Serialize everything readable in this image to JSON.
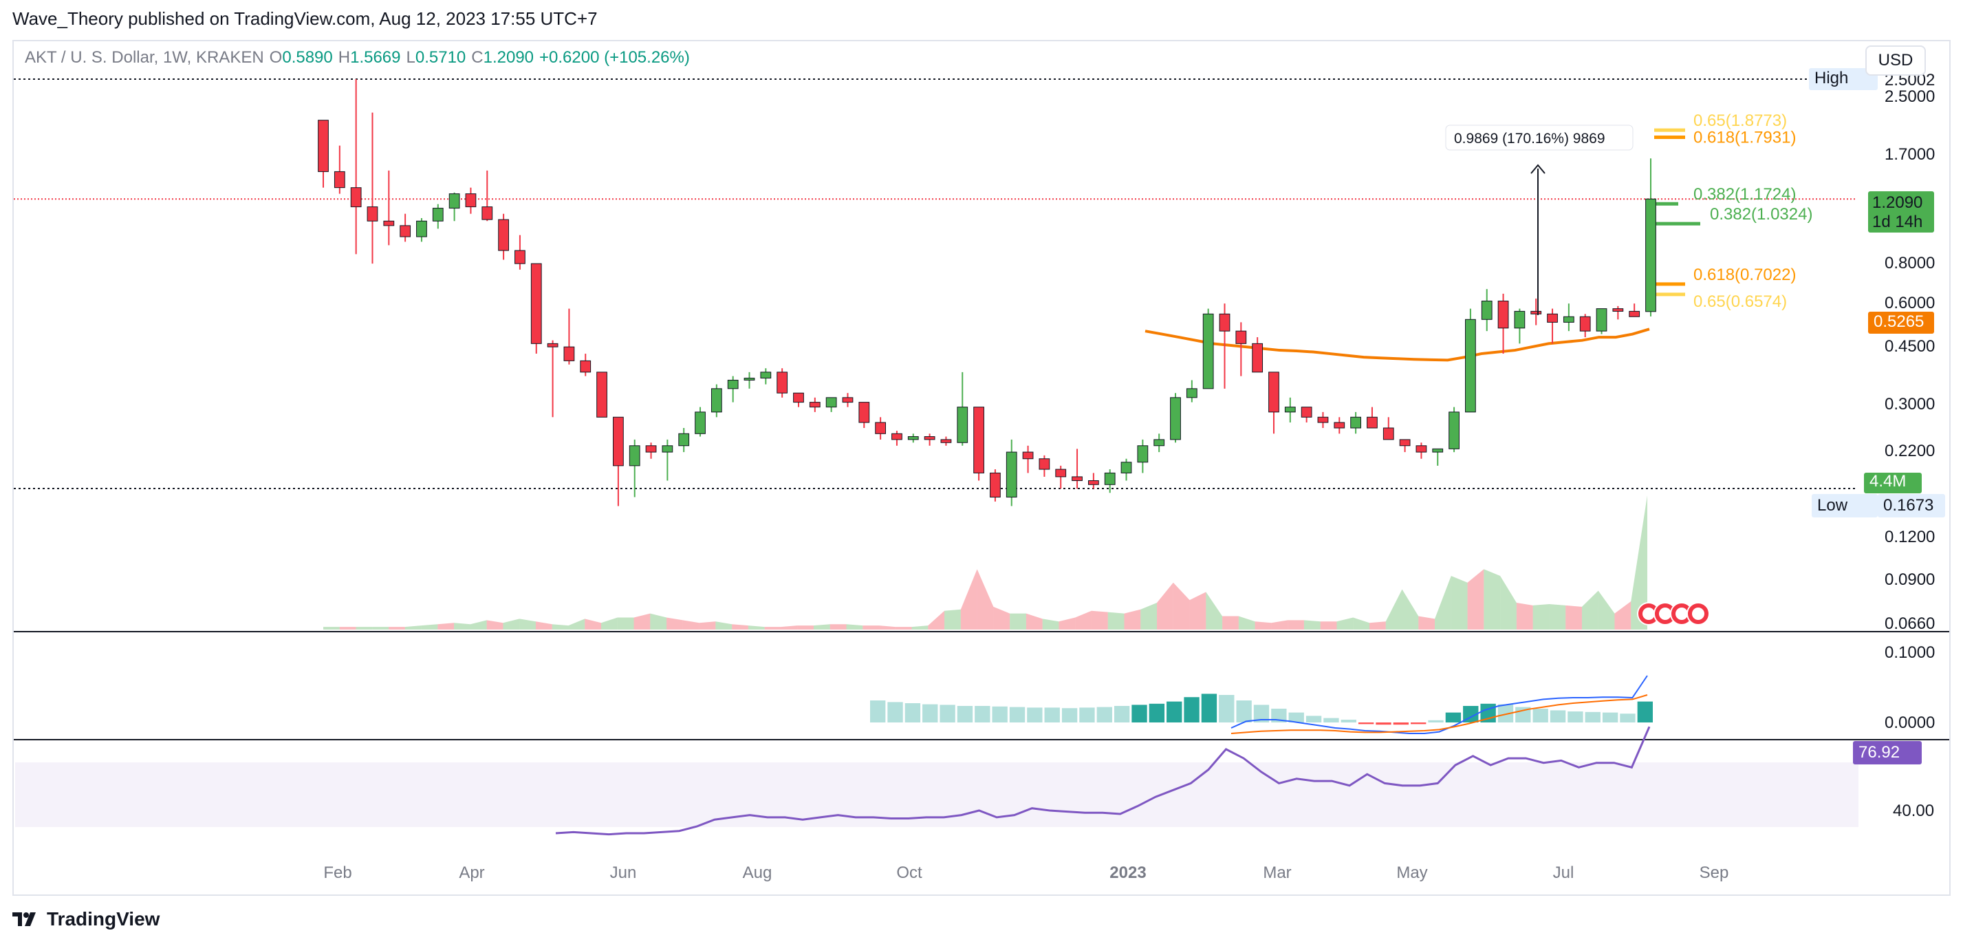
{
  "header": {
    "published": "Wave_Theory published on TradingView.com, Aug 12, 2023 17:55 UTC+7"
  },
  "legend": {
    "symbol": "AKT / U. S. Dollar, 1W, KRAKEN",
    "open_label": "O",
    "open": "0.5890",
    "high_label": "H",
    "high": "1.5669",
    "low_label": "L",
    "low": "0.5710",
    "close_label": "C",
    "close": "1.2090",
    "change": "+0.6200 (+105.26%)"
  },
  "currency_button": "USD",
  "footer": {
    "brand": "TradingView"
  },
  "colors": {
    "up": "#4caf50",
    "down": "#f23645",
    "ema": "#f57c00",
    "macd": "#2962ff",
    "signal": "#ff6d00",
    "rsi": "#7e57c2",
    "fib_green": "#4caf50",
    "fib_orange": "#ff9800",
    "fib_yellow": "#ffd54f"
  },
  "chart_data": {
    "type": "candlestick",
    "scale": "log",
    "x_ticks": [
      "Feb",
      "Apr",
      "Jun",
      "Aug",
      "Oct",
      "2023",
      "Mar",
      "May",
      "Jul",
      "Sep"
    ],
    "y_ticks": [
      "2.5000",
      "1.7000",
      "0.8000",
      "0.6000",
      "0.4500",
      "0.3000",
      "0.2200",
      "0.1200",
      "0.0900",
      "0.0660"
    ],
    "price_labels": {
      "high": {
        "label": "High",
        "value": "2.5002"
      },
      "low": {
        "label": "Low",
        "value": "0.1673"
      },
      "last": {
        "value": "1.2090",
        "countdown": "1d 14h"
      },
      "ema": {
        "value": "0.5265"
      },
      "volume": {
        "value": "4.4M"
      }
    },
    "measure": "0.9869 (170.16%) 9869",
    "fib_levels": [
      {
        "label": "0.65(1.8773)",
        "value": 1.8773,
        "color": "yellow"
      },
      {
        "label": "0.618(1.7931)",
        "value": 1.7931,
        "color": "orange"
      },
      {
        "label": "0.382(1.1724)",
        "value": 1.1724,
        "color": "green"
      },
      {
        "label": "0.382(1.0324)",
        "value": 1.0324,
        "color": "green"
      },
      {
        "label": "0.618(0.7022)",
        "value": 0.7022,
        "color": "orange"
      },
      {
        "label": "0.65(0.6574)",
        "value": 0.6574,
        "color": "yellow"
      }
    ],
    "candles": [
      [
        2.0,
        2.0,
        1.3,
        1.44
      ],
      [
        1.44,
        1.7,
        1.25,
        1.3
      ],
      [
        1.3,
        2.6,
        0.85,
        1.15
      ],
      [
        1.15,
        2.1,
        0.8,
        1.05
      ],
      [
        1.05,
        1.45,
        0.9,
        1.02
      ],
      [
        1.02,
        1.1,
        0.92,
        0.95
      ],
      [
        0.95,
        1.07,
        0.92,
        1.05
      ],
      [
        1.05,
        1.17,
        1.0,
        1.14
      ],
      [
        1.14,
        1.26,
        1.05,
        1.25
      ],
      [
        1.25,
        1.3,
        1.1,
        1.15
      ],
      [
        1.15,
        1.45,
        1.05,
        1.06
      ],
      [
        1.06,
        1.1,
        0.82,
        0.87
      ],
      [
        0.87,
        0.96,
        0.77,
        0.8
      ],
      [
        0.8,
        0.8,
        0.45,
        0.48
      ],
      [
        0.48,
        0.49,
        0.3,
        0.47
      ],
      [
        0.47,
        0.6,
        0.42,
        0.43
      ],
      [
        0.43,
        0.45,
        0.39,
        0.4
      ],
      [
        0.4,
        0.4,
        0.3,
        0.3
      ],
      [
        0.3,
        0.3,
        0.17,
        0.22
      ],
      [
        0.22,
        0.26,
        0.18,
        0.25
      ],
      [
        0.25,
        0.255,
        0.23,
        0.24
      ],
      [
        0.24,
        0.26,
        0.2,
        0.25
      ],
      [
        0.25,
        0.28,
        0.24,
        0.27
      ],
      [
        0.27,
        0.32,
        0.265,
        0.31
      ],
      [
        0.31,
        0.37,
        0.3,
        0.36
      ],
      [
        0.36,
        0.39,
        0.33,
        0.38
      ],
      [
        0.38,
        0.4,
        0.36,
        0.385
      ],
      [
        0.385,
        0.41,
        0.37,
        0.4
      ],
      [
        0.4,
        0.41,
        0.34,
        0.35
      ],
      [
        0.35,
        0.35,
        0.32,
        0.33
      ],
      [
        0.33,
        0.34,
        0.31,
        0.32
      ],
      [
        0.32,
        0.34,
        0.31,
        0.34
      ],
      [
        0.34,
        0.35,
        0.32,
        0.33
      ],
      [
        0.33,
        0.33,
        0.28,
        0.29
      ],
      [
        0.29,
        0.3,
        0.26,
        0.27
      ],
      [
        0.27,
        0.275,
        0.25,
        0.26
      ],
      [
        0.26,
        0.27,
        0.255,
        0.265
      ],
      [
        0.265,
        0.27,
        0.25,
        0.26
      ],
      [
        0.26,
        0.265,
        0.25,
        0.255
      ],
      [
        0.255,
        0.4,
        0.25,
        0.32
      ],
      [
        0.32,
        0.32,
        0.2,
        0.21
      ],
      [
        0.21,
        0.215,
        0.175,
        0.18
      ],
      [
        0.18,
        0.26,
        0.17,
        0.24
      ],
      [
        0.24,
        0.25,
        0.21,
        0.23
      ],
      [
        0.23,
        0.235,
        0.205,
        0.215
      ],
      [
        0.215,
        0.22,
        0.19,
        0.205
      ],
      [
        0.205,
        0.245,
        0.19,
        0.2
      ],
      [
        0.2,
        0.21,
        0.19,
        0.195
      ],
      [
        0.195,
        0.215,
        0.185,
        0.21
      ],
      [
        0.21,
        0.23,
        0.2,
        0.225
      ],
      [
        0.225,
        0.26,
        0.21,
        0.25
      ],
      [
        0.25,
        0.27,
        0.24,
        0.26
      ],
      [
        0.26,
        0.35,
        0.255,
        0.34
      ],
      [
        0.34,
        0.38,
        0.33,
        0.36
      ],
      [
        0.36,
        0.6,
        0.36,
        0.58
      ],
      [
        0.58,
        0.62,
        0.36,
        0.52
      ],
      [
        0.52,
        0.55,
        0.39,
        0.48
      ],
      [
        0.48,
        0.5,
        0.4,
        0.4
      ],
      [
        0.4,
        0.4,
        0.27,
        0.31
      ],
      [
        0.31,
        0.34,
        0.29,
        0.32
      ],
      [
        0.32,
        0.32,
        0.29,
        0.3
      ],
      [
        0.3,
        0.31,
        0.28,
        0.29
      ],
      [
        0.29,
        0.3,
        0.27,
        0.28
      ],
      [
        0.28,
        0.31,
        0.27,
        0.3
      ],
      [
        0.3,
        0.32,
        0.28,
        0.28
      ],
      [
        0.28,
        0.3,
        0.26,
        0.26
      ],
      [
        0.26,
        0.26,
        0.24,
        0.25
      ],
      [
        0.25,
        0.255,
        0.23,
        0.24
      ],
      [
        0.24,
        0.245,
        0.22,
        0.245
      ],
      [
        0.245,
        0.32,
        0.24,
        0.31
      ],
      [
        0.31,
        0.6,
        0.31,
        0.56
      ],
      [
        0.56,
        0.68,
        0.52,
        0.63
      ],
      [
        0.63,
        0.66,
        0.45,
        0.53
      ],
      [
        0.53,
        0.6,
        0.48,
        0.59
      ],
      [
        0.59,
        0.64,
        0.54,
        0.58
      ],
      [
        0.58,
        0.6,
        0.48,
        0.55
      ],
      [
        0.55,
        0.62,
        0.52,
        0.57
      ],
      [
        0.57,
        0.58,
        0.5,
        0.52
      ],
      [
        0.52,
        0.6,
        0.51,
        0.6
      ],
      [
        0.6,
        0.61,
        0.56,
        0.59
      ],
      [
        0.59,
        0.62,
        0.57,
        0.57
      ],
      [
        0.589,
        1.5669,
        0.571,
        1.209
      ]
    ],
    "ema_series": [
      0.52,
      0.51,
      0.5,
      0.49,
      0.48,
      0.475,
      0.47,
      0.465,
      0.46,
      0.458,
      0.455,
      0.45,
      0.445,
      0.44,
      0.438,
      0.436,
      0.434,
      0.433,
      0.432,
      0.44,
      0.45,
      0.455,
      0.46,
      0.47,
      0.48,
      0.485,
      0.49,
      0.5,
      0.5,
      0.51,
      0.5265
    ],
    "volume_series": [
      0.02,
      0.02,
      0.02,
      0.02,
      0.02,
      0.02,
      0.03,
      0.04,
      0.05,
      0.04,
      0.07,
      0.05,
      0.08,
      0.06,
      0.04,
      0.03,
      0.08,
      0.05,
      0.09,
      0.09,
      0.12,
      0.09,
      0.07,
      0.05,
      0.06,
      0.04,
      0.03,
      0.02,
      0.02,
      0.03,
      0.03,
      0.04,
      0.04,
      0.03,
      0.03,
      0.02,
      0.02,
      0.03,
      0.14,
      0.15,
      0.45,
      0.17,
      0.12,
      0.12,
      0.08,
      0.06,
      0.09,
      0.14,
      0.13,
      0.12,
      0.15,
      0.2,
      0.35,
      0.22,
      0.28,
      0.1,
      0.1,
      0.06,
      0.05,
      0.07,
      0.07,
      0.06,
      0.06,
      0.09,
      0.05,
      0.06,
      0.3,
      0.1,
      0.08,
      0.4,
      0.35,
      0.45,
      0.4,
      0.2,
      0.18,
      0.19,
      0.18,
      0.17,
      0.29,
      0.12,
      0.21,
      1.0
    ],
    "macd_hist": [
      0.4,
      0.37,
      0.35,
      0.33,
      0.32,
      0.3,
      0.3,
      0.29,
      0.28,
      0.27,
      0.27,
      0.26,
      0.27,
      0.28,
      0.3,
      0.32,
      0.34,
      0.38,
      0.46,
      0.52,
      0.5,
      0.4,
      0.32,
      0.25,
      0.18,
      0.12,
      0.08,
      0.05,
      -0.03,
      -0.04,
      -0.04,
      -0.03,
      0.04,
      0.18,
      0.3,
      0.34,
      0.33,
      0.28,
      0.25,
      0.22,
      0.2,
      0.19,
      0.18,
      0.16,
      0.38
    ],
    "macd_line": [
      -0.1,
      0.02,
      0.05,
      0.05,
      0.02,
      -0.02,
      -0.06,
      -0.1,
      -0.12,
      -0.15,
      -0.16,
      -0.18,
      -0.2,
      -0.2,
      -0.17,
      -0.06,
      0.08,
      0.22,
      0.3,
      0.34,
      0.38,
      0.42,
      0.44,
      0.45,
      0.45,
      0.46,
      0.46,
      0.45,
      0.85
    ],
    "signal_line": [
      -0.2,
      -0.18,
      -0.16,
      -0.15,
      -0.14,
      -0.14,
      -0.14,
      -0.15,
      -0.17,
      -0.18,
      -0.18,
      -0.17,
      -0.16,
      -0.15,
      -0.13,
      -0.08,
      -0.02,
      0.05,
      0.12,
      0.18,
      0.24,
      0.28,
      0.32,
      0.35,
      0.37,
      0.39,
      0.41,
      0.42,
      0.5
    ],
    "macd_ticks": [
      "0.1000",
      "0.0000"
    ],
    "rsi_series": [
      30,
      30.5,
      30,
      29.5,
      30,
      30,
      30.5,
      31,
      33,
      36,
      37,
      38,
      37,
      37,
      36,
      37,
      38,
      37,
      37,
      36.5,
      36.5,
      37,
      37,
      38,
      40,
      37,
      38,
      41,
      40,
      39.5,
      39,
      39,
      38.5,
      42,
      46,
      49,
      52,
      58,
      67,
      63,
      57,
      52,
      54,
      53,
      53,
      51,
      56,
      52,
      51,
      51,
      52,
      60,
      64,
      60,
      63,
      63,
      61,
      62,
      59,
      61,
      61,
      59,
      76.92
    ],
    "rsi_ticks": [
      "40.00"
    ],
    "rsi_value": "76.92"
  }
}
